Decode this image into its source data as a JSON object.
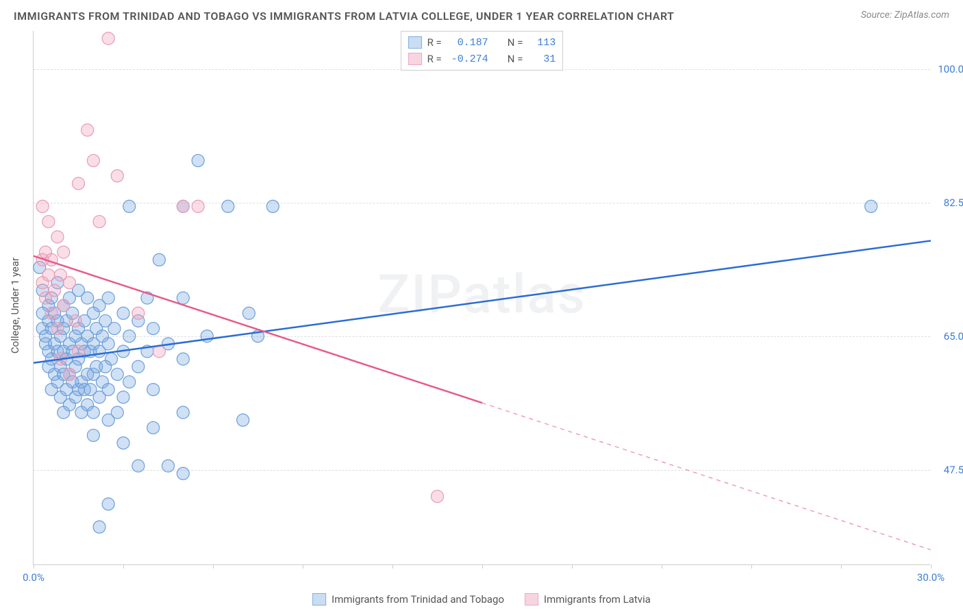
{
  "title": "IMMIGRANTS FROM TRINIDAD AND TOBAGO VS IMMIGRANTS FROM LATVIA COLLEGE, UNDER 1 YEAR CORRELATION CHART",
  "source": "Source: ZipAtlas.com",
  "watermark": "ZIPatlas",
  "y_axis_title": "College, Under 1 year",
  "chart": {
    "type": "scatter",
    "xlim": [
      0,
      30
    ],
    "ylim": [
      35,
      105
    ],
    "x_ticks": [
      0,
      3,
      6,
      9,
      12,
      15,
      18,
      21,
      24,
      27,
      30
    ],
    "x_tick_labels": {
      "0": "0.0%",
      "30": "30.0%"
    },
    "y_gridlines": [
      47.5,
      65.0,
      82.5,
      100.0
    ],
    "y_tick_labels": [
      "47.5%",
      "65.0%",
      "82.5%",
      "100.0%"
    ],
    "background_color": "#ffffff",
    "grid_color": "#dddddd",
    "axis_color": "#cccccc"
  },
  "series": [
    {
      "name": "Immigrants from Trinidad and Tobago",
      "color_fill": "rgba(120,165,225,0.35)",
      "color_stroke": "#6a9fd8",
      "swatch_fill": "#c9ddf3",
      "swatch_border": "#7fb0e0",
      "R": "0.187",
      "N": "113",
      "trend_color": "#2b6cd4",
      "trend": {
        "x1": 0,
        "y1": 61.5,
        "x2": 30,
        "y2": 77.5,
        "solid_to_x": 30
      },
      "points": [
        [
          0.2,
          74
        ],
        [
          0.3,
          71
        ],
        [
          0.3,
          68
        ],
        [
          0.3,
          66
        ],
        [
          0.4,
          65
        ],
        [
          0.4,
          64
        ],
        [
          0.5,
          69
        ],
        [
          0.5,
          67
        ],
        [
          0.5,
          63
        ],
        [
          0.5,
          61
        ],
        [
          0.6,
          70
        ],
        [
          0.6,
          66
        ],
        [
          0.6,
          62
        ],
        [
          0.6,
          58
        ],
        [
          0.7,
          68
        ],
        [
          0.7,
          64
        ],
        [
          0.7,
          60
        ],
        [
          0.8,
          72
        ],
        [
          0.8,
          67
        ],
        [
          0.8,
          63
        ],
        [
          0.8,
          59
        ],
        [
          0.9,
          65
        ],
        [
          0.9,
          61
        ],
        [
          0.9,
          57
        ],
        [
          1.0,
          69
        ],
        [
          1.0,
          66
        ],
        [
          1.0,
          63
        ],
        [
          1.0,
          60
        ],
        [
          1.0,
          55
        ],
        [
          1.1,
          67
        ],
        [
          1.1,
          62
        ],
        [
          1.1,
          58
        ],
        [
          1.2,
          70
        ],
        [
          1.2,
          64
        ],
        [
          1.2,
          60
        ],
        [
          1.2,
          56
        ],
        [
          1.3,
          68
        ],
        [
          1.3,
          63
        ],
        [
          1.3,
          59
        ],
        [
          1.4,
          65
        ],
        [
          1.4,
          61
        ],
        [
          1.4,
          57
        ],
        [
          1.5,
          71
        ],
        [
          1.5,
          66
        ],
        [
          1.5,
          62
        ],
        [
          1.5,
          58
        ],
        [
          1.6,
          64
        ],
        [
          1.6,
          59
        ],
        [
          1.6,
          55
        ],
        [
          1.7,
          67
        ],
        [
          1.7,
          63
        ],
        [
          1.7,
          58
        ],
        [
          1.8,
          70
        ],
        [
          1.8,
          65
        ],
        [
          1.8,
          60
        ],
        [
          1.8,
          56
        ],
        [
          1.9,
          63
        ],
        [
          1.9,
          58
        ],
        [
          2.0,
          68
        ],
        [
          2.0,
          64
        ],
        [
          2.0,
          60
        ],
        [
          2.0,
          55
        ],
        [
          2.0,
          52
        ],
        [
          2.1,
          66
        ],
        [
          2.1,
          61
        ],
        [
          2.2,
          69
        ],
        [
          2.2,
          63
        ],
        [
          2.2,
          57
        ],
        [
          2.3,
          65
        ],
        [
          2.3,
          59
        ],
        [
          2.4,
          67
        ],
        [
          2.4,
          61
        ],
        [
          2.5,
          70
        ],
        [
          2.5,
          64
        ],
        [
          2.5,
          58
        ],
        [
          2.5,
          54
        ],
        [
          2.6,
          62
        ],
        [
          2.7,
          66
        ],
        [
          2.8,
          60
        ],
        [
          2.8,
          55
        ],
        [
          3.0,
          68
        ],
        [
          3.0,
          63
        ],
        [
          3.0,
          57
        ],
        [
          3.0,
          51
        ],
        [
          3.2,
          82
        ],
        [
          3.2,
          65
        ],
        [
          3.2,
          59
        ],
        [
          3.5,
          67
        ],
        [
          3.5,
          61
        ],
        [
          3.5,
          48
        ],
        [
          3.8,
          70
        ],
        [
          3.8,
          63
        ],
        [
          4.0,
          66
        ],
        [
          4.0,
          58
        ],
        [
          4.0,
          53
        ],
        [
          4.2,
          75
        ],
        [
          4.5,
          64
        ],
        [
          4.5,
          48
        ],
        [
          5.0,
          82
        ],
        [
          5.0,
          70
        ],
        [
          5.0,
          62
        ],
        [
          5.0,
          55
        ],
        [
          5.0,
          47
        ],
        [
          5.5,
          88
        ],
        [
          5.8,
          65
        ],
        [
          6.5,
          82
        ],
        [
          7.0,
          54
        ],
        [
          7.2,
          68
        ],
        [
          7.5,
          65
        ],
        [
          8.0,
          82
        ],
        [
          2.2,
          40
        ],
        [
          2.5,
          43
        ],
        [
          28.0,
          82
        ]
      ]
    },
    {
      "name": "Immigrants from Latvia",
      "color_fill": "rgba(240,160,185,0.35)",
      "color_stroke": "#e89ab3",
      "swatch_fill": "#f7d5e0",
      "swatch_border": "#eca8c0",
      "R": "-0.274",
      "N": "31",
      "trend_color": "#e85a8a",
      "trend": {
        "x1": 0,
        "y1": 75.5,
        "x2": 30,
        "y2": 37.0,
        "solid_to_x": 15
      },
      "points": [
        [
          0.3,
          82
        ],
        [
          0.3,
          75
        ],
        [
          0.3,
          72
        ],
        [
          0.4,
          76
        ],
        [
          0.4,
          70
        ],
        [
          0.5,
          80
        ],
        [
          0.5,
          73
        ],
        [
          0.6,
          75
        ],
        [
          0.6,
          68
        ],
        [
          0.7,
          71
        ],
        [
          0.8,
          78
        ],
        [
          0.8,
          66
        ],
        [
          0.9,
          73
        ],
        [
          0.9,
          62
        ],
        [
          1.0,
          76
        ],
        [
          1.0,
          69
        ],
        [
          1.2,
          72
        ],
        [
          1.2,
          60
        ],
        [
          1.4,
          67
        ],
        [
          1.5,
          85
        ],
        [
          1.5,
          63
        ],
        [
          1.8,
          92
        ],
        [
          2.0,
          88
        ],
        [
          2.2,
          80
        ],
        [
          2.5,
          104
        ],
        [
          2.8,
          86
        ],
        [
          3.5,
          68
        ],
        [
          4.2,
          63
        ],
        [
          5.0,
          82
        ],
        [
          5.5,
          82
        ],
        [
          13.5,
          44
        ]
      ]
    }
  ],
  "legend_top": [
    {
      "series_idx": 0,
      "R_label": "R =",
      "N_label": "N ="
    },
    {
      "series_idx": 1,
      "R_label": "R =",
      "N_label": "N ="
    }
  ]
}
